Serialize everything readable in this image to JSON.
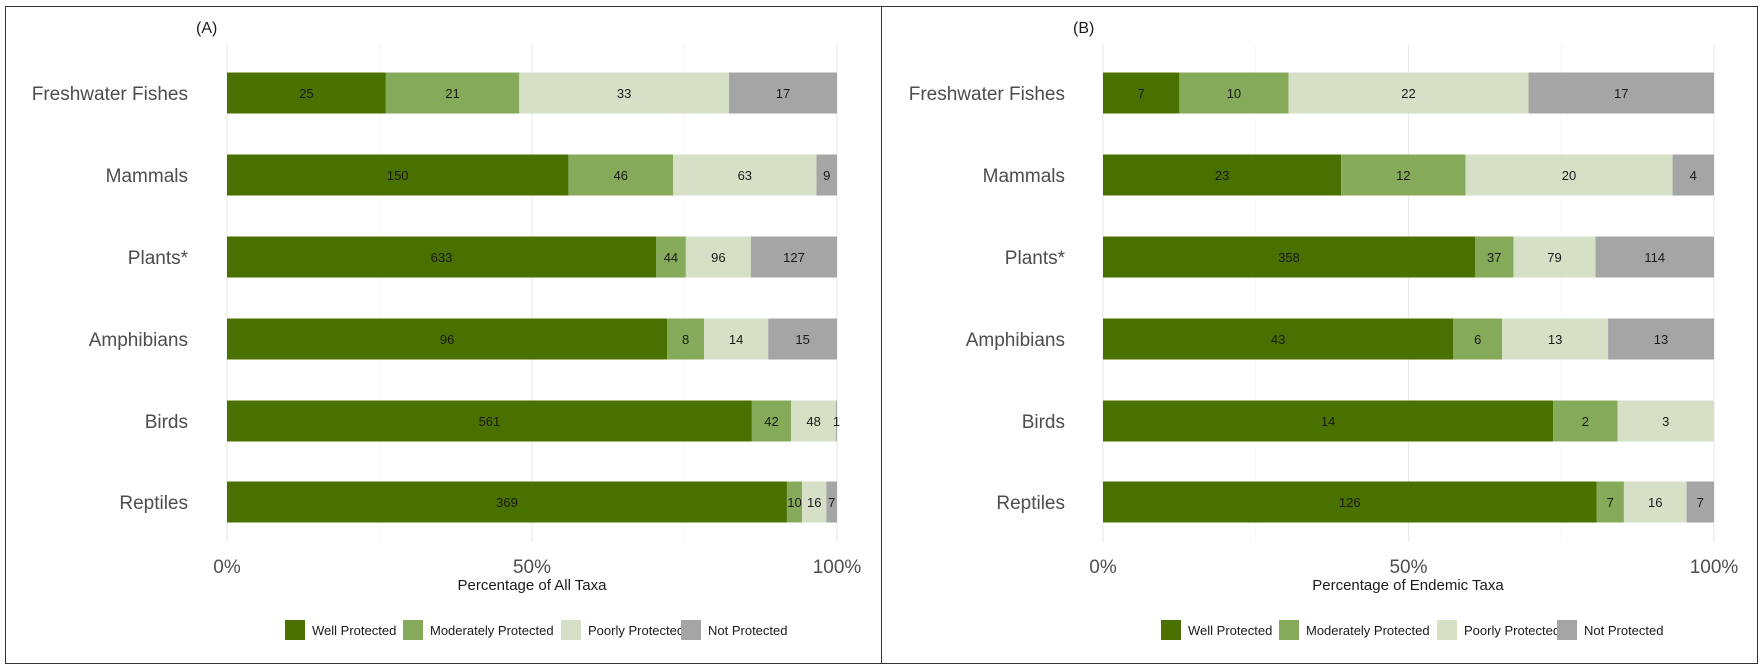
{
  "legend": [
    {
      "name": "Well Protected",
      "color": "#4a7000"
    },
    {
      "name": "Moderately Protected",
      "color": "#85aa5a"
    },
    {
      "name": "Poorly Protected",
      "color": "#d5e0c6"
    },
    {
      "name": "Not Protected",
      "color": "#a5a5a5"
    }
  ],
  "chart_data": [
    {
      "type": "bar",
      "orientation": "horizontal",
      "stacked": "percent",
      "panel_label": "(A)",
      "xlabel": "Percentage of All Taxa",
      "xticks": [
        "0%",
        "50%",
        "100%"
      ],
      "xlim": [
        0,
        100
      ],
      "grid": true,
      "legend_position": "bottom",
      "categories": [
        "Freshwater Fishes",
        "Mammals",
        "Plants*",
        "Amphibians",
        "Birds",
        "Reptiles"
      ],
      "series": [
        {
          "name": "Well Protected",
          "values": [
            25,
            150,
            633,
            96,
            561,
            369
          ]
        },
        {
          "name": "Moderately Protected",
          "values": [
            21,
            46,
            44,
            8,
            42,
            10
          ]
        },
        {
          "name": "Poorly Protected",
          "values": [
            33,
            63,
            96,
            14,
            48,
            16
          ]
        },
        {
          "name": "Not Protected",
          "values": [
            17,
            9,
            127,
            15,
            1,
            7
          ]
        }
      ]
    },
    {
      "type": "bar",
      "orientation": "horizontal",
      "stacked": "percent",
      "panel_label": "(B)",
      "xlabel": "Percentage of Endemic Taxa",
      "xticks": [
        "0%",
        "50%",
        "100%"
      ],
      "xlim": [
        0,
        100
      ],
      "grid": true,
      "legend_position": "bottom",
      "categories": [
        "Freshwater Fishes",
        "Mammals",
        "Plants*",
        "Amphibians",
        "Birds",
        "Reptiles"
      ],
      "series": [
        {
          "name": "Well Protected",
          "values": [
            7,
            23,
            358,
            43,
            14,
            126
          ]
        },
        {
          "name": "Moderately Protected",
          "values": [
            10,
            12,
            37,
            6,
            2,
            7
          ]
        },
        {
          "name": "Poorly Protected",
          "values": [
            22,
            20,
            79,
            13,
            3,
            16
          ]
        },
        {
          "name": "Not Protected",
          "values": [
            17,
            4,
            114,
            13,
            0,
            7
          ]
        }
      ]
    }
  ]
}
